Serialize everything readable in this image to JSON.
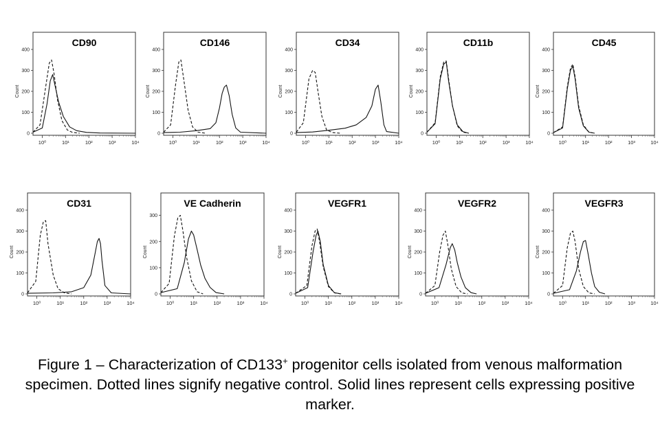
{
  "figure": {
    "caption_pre": "Figure 1 – Characterization of CD133",
    "caption_sup": "+",
    "caption_post": " progenitor cells isolated from venous malformation specimen. Dotted lines signify negative control. Solid lines represent cells expressing positive marker."
  },
  "chart_data": [
    {
      "type": "line",
      "title": "CD90",
      "ylabel": "Count",
      "x_scale": "log",
      "x_ticks": [
        "10⁰",
        "10¹",
        "10²",
        "10³",
        "10⁴"
      ],
      "y_ticks": [
        0,
        100,
        200,
        300,
        400
      ],
      "xlim": [
        0.4,
        10000
      ],
      "ylim": [
        0,
        400
      ],
      "series": [
        {
          "style": "dashed",
          "x": [
            0.4,
            0.8,
            1.4,
            2.0,
            2.5,
            3.2,
            4.5,
            7,
            12,
            20,
            40
          ],
          "y": [
            5,
            40,
            220,
            335,
            350,
            285,
            160,
            60,
            15,
            4,
            0
          ]
        },
        {
          "style": "solid",
          "x": [
            0.4,
            1.0,
            1.6,
            2.2,
            2.8,
            3.5,
            5,
            8,
            15,
            30,
            80,
            300,
            10000
          ],
          "y": [
            5,
            25,
            140,
            250,
            280,
            230,
            150,
            80,
            30,
            12,
            4,
            1,
            0
          ]
        }
      ]
    },
    {
      "type": "line",
      "title": "CD146",
      "ylabel": "Count",
      "x_scale": "log",
      "x_ticks": [
        "10⁰",
        "10¹",
        "10²",
        "10³",
        "10⁴"
      ],
      "y_ticks": [
        0,
        100,
        200,
        300,
        400
      ],
      "xlim": [
        0.4,
        10000
      ],
      "ylim": [
        0,
        400
      ],
      "series": [
        {
          "style": "dashed",
          "x": [
            0.4,
            0.8,
            1.3,
            1.8,
            2.2,
            3,
            4.5,
            7,
            12,
            25
          ],
          "y": [
            5,
            40,
            230,
            340,
            350,
            250,
            110,
            30,
            5,
            0
          ]
        },
        {
          "style": "solid",
          "x": [
            0.4,
            2,
            10,
            40,
            70,
            100,
            130,
            160,
            200,
            260,
            350,
            500,
            800,
            10000
          ],
          "y": [
            3,
            5,
            12,
            22,
            50,
            120,
            190,
            220,
            230,
            180,
            90,
            25,
            5,
            0
          ]
        }
      ]
    },
    {
      "type": "line",
      "title": "CD34",
      "ylabel": "Count",
      "x_scale": "log",
      "x_ticks": [
        "10⁰",
        "10¹",
        "10²",
        "10³",
        "10⁴"
      ],
      "y_ticks": [
        0,
        100,
        200,
        300,
        400
      ],
      "xlim": [
        0.4,
        10000
      ],
      "ylim": [
        0,
        400
      ],
      "series": [
        {
          "style": "dashed",
          "x": [
            0.4,
            0.8,
            1.4,
            2.0,
            2.6,
            3.4,
            5,
            8,
            15,
            30
          ],
          "y": [
            5,
            50,
            260,
            300,
            290,
            200,
            80,
            15,
            3,
            0
          ]
        },
        {
          "style": "solid",
          "x": [
            0.4,
            2,
            10,
            50,
            150,
            400,
            700,
            1000,
            1300,
            1700,
            2300,
            3000,
            10000
          ],
          "y": [
            3,
            6,
            14,
            24,
            40,
            75,
            130,
            210,
            230,
            150,
            40,
            8,
            0
          ]
        }
      ]
    },
    {
      "type": "line",
      "title": "CD11b",
      "ylabel": "Count",
      "x_scale": "log",
      "x_ticks": [
        "10⁰",
        "10¹",
        "10²",
        "10³",
        "10⁴"
      ],
      "y_ticks": [
        0,
        100,
        200,
        300,
        400
      ],
      "xlim": [
        0.4,
        10000
      ],
      "ylim": [
        0,
        400
      ],
      "series": [
        {
          "style": "dashed",
          "x": [
            0.4,
            0.9,
            1.5,
            2.1,
            2.7,
            3.4,
            5,
            8,
            14,
            25
          ],
          "y": [
            5,
            50,
            270,
            340,
            345,
            260,
            130,
            35,
            5,
            0
          ]
        },
        {
          "style": "solid",
          "x": [
            0.4,
            0.9,
            1.5,
            2.1,
            2.7,
            3.4,
            5,
            8,
            14,
            25
          ],
          "y": [
            5,
            45,
            260,
            330,
            340,
            250,
            130,
            40,
            8,
            0
          ]
        }
      ]
    },
    {
      "type": "line",
      "title": "CD45",
      "ylabel": "Count",
      "x_scale": "log",
      "x_ticks": [
        "10⁰",
        "10¹",
        "10²",
        "10³",
        "10⁴"
      ],
      "y_ticks": [
        0,
        100,
        200,
        300,
        400
      ],
      "xlim": [
        0.4,
        10000
      ],
      "ylim": [
        0,
        400
      ],
      "series": [
        {
          "style": "dashed",
          "x": [
            0.4,
            1.0,
            1.6,
            2.2,
            2.8,
            3.5,
            5,
            8,
            14,
            25
          ],
          "y": [
            3,
            30,
            220,
            310,
            330,
            270,
            130,
            40,
            5,
            0
          ]
        },
        {
          "style": "solid",
          "x": [
            0.4,
            1.0,
            1.6,
            2.2,
            2.8,
            3.5,
            5,
            8,
            14,
            25
          ],
          "y": [
            3,
            25,
            210,
            300,
            320,
            260,
            120,
            35,
            5,
            0
          ]
        }
      ]
    },
    {
      "type": "line",
      "title": "CD31",
      "ylabel": "Count",
      "x_scale": "log",
      "x_ticks": [
        "10⁰",
        "10¹",
        "10²",
        "10³",
        "10⁴"
      ],
      "y_ticks": [
        0,
        100,
        200,
        300,
        400
      ],
      "xlim": [
        0.4,
        10000
      ],
      "ylim": [
        0,
        400
      ],
      "series": [
        {
          "style": "dashed",
          "x": [
            0.4,
            0.9,
            1.4,
            1.9,
            2.4,
            3,
            5,
            8,
            15,
            30
          ],
          "y": [
            5,
            60,
            280,
            345,
            350,
            240,
            90,
            25,
            5,
            0
          ]
        },
        {
          "style": "solid",
          "x": [
            0.4,
            5,
            30,
            100,
            200,
            300,
            380,
            450,
            520,
            600,
            800,
            1500,
            10000
          ],
          "y": [
            3,
            5,
            10,
            30,
            90,
            190,
            250,
            265,
            240,
            160,
            40,
            5,
            0
          ]
        }
      ]
    },
    {
      "type": "line",
      "title": "VE Cadherin",
      "ylabel": "Count",
      "x_scale": "log",
      "x_ticks": [
        "10⁰",
        "10¹",
        "10²",
        "10³",
        "10⁴"
      ],
      "y_ticks": [
        0,
        100,
        200,
        300
      ],
      "xlim": [
        0.4,
        10000
      ],
      "ylim": [
        0,
        320
      ],
      "series": [
        {
          "style": "dashed",
          "x": [
            0.4,
            0.9,
            1.5,
            2.1,
            2.7,
            3.5,
            5,
            8,
            14,
            25
          ],
          "y": [
            5,
            40,
            220,
            290,
            300,
            240,
            140,
            50,
            8,
            0
          ]
        },
        {
          "style": "solid",
          "x": [
            0.4,
            2,
            4,
            6,
            8,
            10,
            14,
            20,
            30,
            50,
            90,
            200
          ],
          "y": [
            5,
            20,
            120,
            210,
            240,
            225,
            170,
            110,
            60,
            25,
            5,
            0
          ]
        }
      ]
    },
    {
      "type": "line",
      "title": "VEGFR1",
      "ylabel": "Count",
      "x_scale": "log",
      "x_ticks": [
        "10⁰",
        "10¹",
        "10²",
        "10³",
        "10⁴"
      ],
      "y_ticks": [
        0,
        100,
        200,
        300,
        400
      ],
      "xlim": [
        0.4,
        10000
      ],
      "ylim": [
        0,
        400
      ],
      "series": [
        {
          "style": "dashed",
          "x": [
            0.4,
            1.2,
            2.0,
            2.7,
            3.3,
            4.2,
            6,
            10,
            18,
            35
          ],
          "y": [
            3,
            40,
            230,
            300,
            310,
            250,
            130,
            35,
            5,
            0
          ]
        },
        {
          "style": "solid",
          "x": [
            0.4,
            1.3,
            2.2,
            3.0,
            3.6,
            4.5,
            6,
            10,
            18,
            35
          ],
          "y": [
            3,
            30,
            200,
            280,
            300,
            250,
            140,
            40,
            6,
            0
          ]
        }
      ]
    },
    {
      "type": "line",
      "title": "VEGFR2",
      "ylabel": "Count",
      "x_scale": "log",
      "x_ticks": [
        "10⁰",
        "10¹",
        "10²",
        "10³",
        "10⁴"
      ],
      "y_ticks": [
        0,
        100,
        200,
        300,
        400
      ],
      "xlim": [
        0.4,
        10000
      ],
      "ylim": [
        0,
        400
      ],
      "series": [
        {
          "style": "dashed",
          "x": [
            0.4,
            1.0,
            1.6,
            2.2,
            2.8,
            3.5,
            5,
            8,
            14,
            25
          ],
          "y": [
            3,
            40,
            200,
            280,
            300,
            240,
            120,
            35,
            5,
            0
          ]
        },
        {
          "style": "solid",
          "x": [
            0.4,
            1.5,
            3,
            4.5,
            5.5,
            7,
            9,
            13,
            20,
            35,
            60
          ],
          "y": [
            3,
            30,
            140,
            220,
            240,
            210,
            150,
            80,
            30,
            6,
            0
          ]
        }
      ]
    },
    {
      "type": "line",
      "title": "VEGFR3",
      "ylabel": "Count",
      "x_scale": "log",
      "x_ticks": [
        "10⁰",
        "10¹",
        "10²",
        "10³",
        "10⁴"
      ],
      "y_ticks": [
        0,
        100,
        200,
        300,
        400
      ],
      "xlim": [
        0.4,
        10000
      ],
      "ylim": [
        0,
        400
      ],
      "series": [
        {
          "style": "dashed",
          "x": [
            0.4,
            1.0,
            1.6,
            2.2,
            2.8,
            3.5,
            5,
            8,
            14,
            25
          ],
          "y": [
            3,
            40,
            220,
            290,
            300,
            250,
            120,
            35,
            5,
            0
          ]
        },
        {
          "style": "solid",
          "x": [
            0.4,
            2,
            4,
            6,
            8,
            10,
            13,
            18,
            25,
            40,
            70
          ],
          "y": [
            3,
            20,
            110,
            200,
            250,
            255,
            190,
            100,
            35,
            8,
            0
          ]
        }
      ]
    }
  ]
}
